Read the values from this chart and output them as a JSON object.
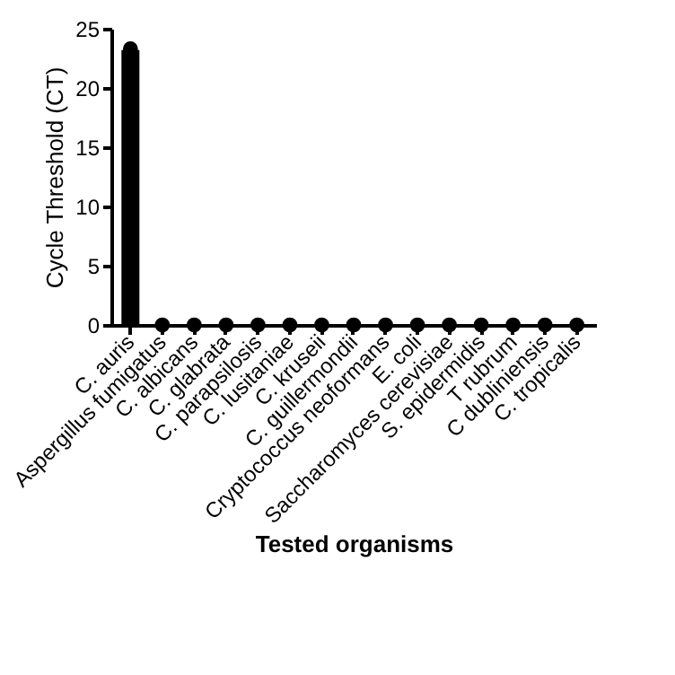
{
  "chart_data": {
    "type": "bar",
    "categories": [
      "C. auris",
      "Aspergillus fumigatus",
      "C. albicans",
      "C. glabrata",
      "C. parapsilosis",
      "C. lusitaniae",
      "C. kruseii",
      "C. guillermondii",
      "Cryptococcus neoformans",
      "E. coli",
      "Saccharomyces cerevisiae",
      "S. epidermidis",
      "T rubrum",
      "C dubliniensis",
      "C. tropicalis"
    ],
    "xlabel": "Tested organisms",
    "ylabel": "Cycle Threshold (CT)",
    "ylim": [
      0,
      25
    ],
    "yticks": [
      0,
      5,
      10,
      15,
      20,
      25
    ],
    "series": [
      {
        "color": "#000000",
        "values": [
          23.2,
          0,
          0,
          0,
          0,
          0,
          0,
          0,
          0,
          0,
          0,
          0,
          0,
          0,
          0
        ]
      },
      {
        "type": "scatter",
        "color": "#000000",
        "marker": "circle",
        "x": [
          "C. auris",
          "Aspergillus fumigatus",
          "C. albicans",
          "C. glabrata",
          "C. parapsilosis",
          "C. lusitaniae",
          "C. kruseii",
          "C. guillermondii",
          "Cryptococcus neoformans",
          "E. coli",
          "Saccharomyces cerevisiae",
          "S. epidermidis",
          "T rubrum",
          "C dubliniensis",
          "C. tropicalis"
        ],
        "values": [
          23.3,
          0,
          0,
          0,
          0,
          0,
          0,
          0,
          0,
          0,
          0,
          0,
          0,
          0,
          0
        ]
      }
    ]
  }
}
